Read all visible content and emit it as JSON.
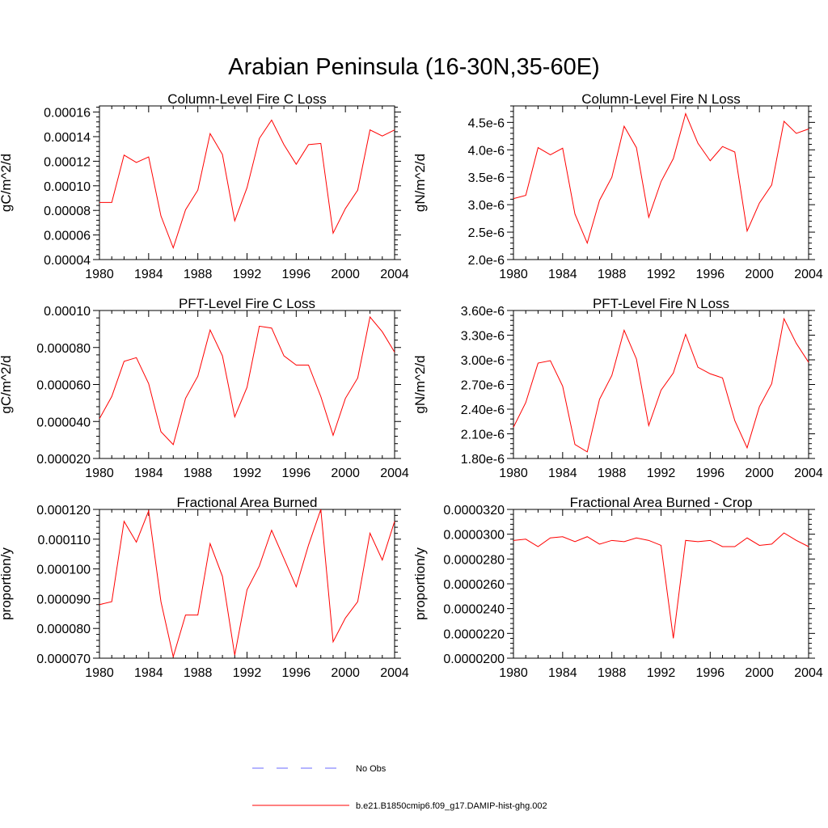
{
  "figure": {
    "title": "Arabian Peninsula (16-30N,35-60E)"
  },
  "chart_data": [
    {
      "type": "line",
      "title": "Column-Level Fire C Loss",
      "ylabel": "gC/m^2/d",
      "xlabel": "",
      "x": [
        1980,
        1981,
        1982,
        1983,
        1984,
        1985,
        1986,
        1987,
        1988,
        1989,
        1990,
        1991,
        1992,
        1993,
        1994,
        1995,
        1996,
        1997,
        1998,
        1999,
        2000,
        2001,
        2002,
        2003,
        2004
      ],
      "xlim": [
        1980,
        2004
      ],
      "ylim": [
        4e-05,
        0.000165
      ],
      "xticks": [
        1980,
        1984,
        1988,
        1992,
        1996,
        2000,
        2004
      ],
      "xtick_labels": [
        "1980",
        "1984",
        "1988",
        "1992",
        "1996",
        "2000",
        "2004"
      ],
      "yticks": [
        4e-05,
        6e-05,
        8e-05,
        0.0001,
        0.00012,
        0.00014,
        0.00016
      ],
      "ytick_labels": [
        "0.00004",
        "0.00006",
        "0.00008",
        "0.00010",
        "0.00012",
        "0.00014",
        "0.00016"
      ],
      "series": [
        {
          "name": "b.e21.B1850cmip6.f09_g17.DAMIP-hist-ghg.002",
          "color": "#ff0000",
          "values": [
            8.65e-05,
            8.65e-05,
            0.000125,
            0.000119,
            0.0001235,
            7.55e-05,
            4.95e-05,
            8.05e-05,
            9.65e-05,
            0.0001425,
            0.0001255,
            7.15e-05,
            9.85e-05,
            0.0001385,
            0.0001535,
            0.0001335,
            0.0001175,
            0.0001335,
            0.0001345,
            6.15e-05,
            8.15e-05,
            9.65e-05,
            0.0001455,
            0.0001405,
            0.0001455
          ]
        }
      ]
    },
    {
      "type": "line",
      "title": "Column-Level Fire N Loss",
      "ylabel": "gN/m^2/d",
      "xlabel": "",
      "x": [
        1980,
        1981,
        1982,
        1983,
        1984,
        1985,
        1986,
        1987,
        1988,
        1989,
        1990,
        1991,
        1992,
        1993,
        1994,
        1995,
        1996,
        1997,
        1998,
        1999,
        2000,
        2001,
        2002,
        2003,
        2004
      ],
      "xlim": [
        1980,
        2004
      ],
      "ylim": [
        2e-06,
        4.8e-06
      ],
      "xticks": [
        1980,
        1984,
        1988,
        1992,
        1996,
        2000,
        2004
      ],
      "xtick_labels": [
        "1980",
        "1984",
        "1988",
        "1992",
        "1996",
        "2000",
        "2004"
      ],
      "yticks": [
        2e-06,
        2.5e-06,
        3e-06,
        3.5e-06,
        4e-06,
        4.5e-06
      ],
      "ytick_labels": [
        "2.0e-6",
        "2.5e-6",
        "3.0e-6",
        "3.5e-6",
        "4.0e-6",
        "4.5e-6"
      ],
      "series": [
        {
          "name": "b.e21.B1850cmip6.f09_g17.DAMIP-hist-ghg.002",
          "color": "#ff0000",
          "values": [
            3.11e-06,
            3.17e-06,
            4.04e-06,
            3.91e-06,
            4.03e-06,
            2.83e-06,
            2.3e-06,
            3.08e-06,
            3.5e-06,
            4.43e-06,
            4.04e-06,
            2.77e-06,
            3.42e-06,
            3.84e-06,
            4.66e-06,
            4.12e-06,
            3.8e-06,
            4.06e-06,
            3.96e-06,
            2.52e-06,
            3.03e-06,
            3.36e-06,
            4.52e-06,
            4.3e-06,
            4.38e-06
          ]
        }
      ]
    },
    {
      "type": "line",
      "title": "PFT-Level Fire C Loss",
      "ylabel": "gC/m^2/d",
      "xlabel": "",
      "x": [
        1980,
        1981,
        1982,
        1983,
        1984,
        1985,
        1986,
        1987,
        1988,
        1989,
        1990,
        1991,
        1992,
        1993,
        1994,
        1995,
        1996,
        1997,
        1998,
        1999,
        2000,
        2001,
        2002,
        2003,
        2004
      ],
      "xlim": [
        1980,
        2004
      ],
      "ylim": [
        2e-05,
        0.0001
      ],
      "xticks": [
        1980,
        1984,
        1988,
        1992,
        1996,
        2000,
        2004
      ],
      "xtick_labels": [
        "1980",
        "1984",
        "1988",
        "1992",
        "1996",
        "2000",
        "2004"
      ],
      "yticks": [
        2e-05,
        4e-05,
        6e-05,
        8e-05,
        0.0001
      ],
      "ytick_labels": [
        "0.000020",
        "0.000040",
        "0.000060",
        "0.000080",
        "0.00010"
      ],
      "series": [
        {
          "name": "b.e21.B1850cmip6.f09_g17.DAMIP-hist-ghg.002",
          "color": "#ff0000",
          "values": [
            4.15e-05,
            5.35e-05,
            7.25e-05,
            7.45e-05,
            6.05e-05,
            3.45e-05,
            2.75e-05,
            5.25e-05,
            6.45e-05,
            8.95e-05,
            7.55e-05,
            4.25e-05,
            5.85e-05,
            9.15e-05,
            9.05e-05,
            7.55e-05,
            7.05e-05,
            7.05e-05,
            5.35e-05,
            3.25e-05,
            5.25e-05,
            6.35e-05,
            9.65e-05,
            8.85e-05,
            7.75e-05
          ]
        }
      ]
    },
    {
      "type": "line",
      "title": "PFT-Level Fire N Loss",
      "ylabel": "gN/m^2/d",
      "xlabel": "",
      "x": [
        1980,
        1981,
        1982,
        1983,
        1984,
        1985,
        1986,
        1987,
        1988,
        1989,
        1990,
        1991,
        1992,
        1993,
        1994,
        1995,
        1996,
        1997,
        1998,
        1999,
        2000,
        2001,
        2002,
        2003,
        2004
      ],
      "xlim": [
        1980,
        2004
      ],
      "ylim": [
        1.8e-06,
        3.6e-06
      ],
      "xticks": [
        1980,
        1984,
        1988,
        1992,
        1996,
        2000,
        2004
      ],
      "xtick_labels": [
        "1980",
        "1984",
        "1988",
        "1992",
        "1996",
        "2000",
        "2004"
      ],
      "yticks": [
        1.8e-06,
        2.1e-06,
        2.4e-06,
        2.7e-06,
        3e-06,
        3.3e-06,
        3.6e-06
      ],
      "ytick_labels": [
        "1.80e-6",
        "2.10e-6",
        "2.40e-6",
        "2.70e-6",
        "3.00e-6",
        "3.30e-6",
        "3.60e-6"
      ],
      "series": [
        {
          "name": "b.e21.B1850cmip6.f09_g17.DAMIP-hist-ghg.002",
          "color": "#ff0000",
          "values": [
            2.18e-06,
            2.48e-06,
            2.96e-06,
            2.99e-06,
            2.68e-06,
            1.97e-06,
            1.88e-06,
            2.52e-06,
            2.81e-06,
            3.36e-06,
            3.01e-06,
            2.2e-06,
            2.63e-06,
            2.84e-06,
            3.31e-06,
            2.91e-06,
            2.83e-06,
            2.78e-06,
            2.26e-06,
            1.93e-06,
            2.43e-06,
            2.71e-06,
            3.5e-06,
            3.2e-06,
            2.97e-06
          ]
        }
      ]
    },
    {
      "type": "line",
      "title": "Fractional Area Burned",
      "ylabel": "proportion/y",
      "xlabel": "",
      "x": [
        1980,
        1981,
        1982,
        1983,
        1984,
        1985,
        1986,
        1987,
        1988,
        1989,
        1990,
        1991,
        1992,
        1993,
        1994,
        1995,
        1996,
        1997,
        1998,
        1999,
        2000,
        2001,
        2002,
        2003,
        2004
      ],
      "xlim": [
        1980,
        2004
      ],
      "ylim": [
        7e-05,
        0.00012
      ],
      "xticks": [
        1980,
        1984,
        1988,
        1992,
        1996,
        2000,
        2004
      ],
      "xtick_labels": [
        "1980",
        "1984",
        "1988",
        "1992",
        "1996",
        "2000",
        "2004"
      ],
      "yticks": [
        7e-05,
        8e-05,
        9e-05,
        0.0001,
        0.00011,
        0.00012
      ],
      "ytick_labels": [
        "0.000070",
        "0.000080",
        "0.000090",
        "0.000100",
        "0.000110",
        "0.000120"
      ],
      "series": [
        {
          "name": "b.e21.B1850cmip6.f09_g17.DAMIP-hist-ghg.002",
          "color": "#ff0000",
          "values": [
            8.8e-05,
            8.9e-05,
            0.000116,
            0.000109,
            0.0001195,
            8.9e-05,
            7.05e-05,
            8.45e-05,
            8.45e-05,
            0.0001085,
            9.75e-05,
            7.1e-05,
            9.3e-05,
            0.000101,
            0.000113,
            0.0001035,
            9.4e-05,
            0.000108,
            0.00012,
            7.55e-05,
            8.35e-05,
            8.9e-05,
            0.000112,
            0.000103,
            0.000116
          ]
        }
      ]
    },
    {
      "type": "line",
      "title": "Fractional Area Burned - Crop",
      "ylabel": "proportion/y",
      "xlabel": "",
      "x": [
        1980,
        1981,
        1982,
        1983,
        1984,
        1985,
        1986,
        1987,
        1988,
        1989,
        1990,
        1991,
        1992,
        1993,
        1994,
        1995,
        1996,
        1997,
        1998,
        1999,
        2000,
        2001,
        2002,
        2003,
        2004
      ],
      "xlim": [
        1980,
        2004
      ],
      "ylim": [
        2e-05,
        3.2e-05
      ],
      "xticks": [
        1980,
        1984,
        1988,
        1992,
        1996,
        2000,
        2004
      ],
      "xtick_labels": [
        "1980",
        "1984",
        "1988",
        "1992",
        "1996",
        "2000",
        "2004"
      ],
      "yticks": [
        2e-05,
        2.2e-05,
        2.4e-05,
        2.6e-05,
        2.8e-05,
        3e-05,
        3.2e-05
      ],
      "ytick_labels": [
        "0.0000200",
        "0.0000220",
        "0.0000240",
        "0.0000260",
        "0.0000280",
        "0.0000300",
        "0.0000320"
      ],
      "series": [
        {
          "name": "b.e21.B1850cmip6.f09_g17.DAMIP-hist-ghg.002",
          "color": "#ff0000",
          "values": [
            2.95e-05,
            2.96e-05,
            2.9e-05,
            2.97e-05,
            2.98e-05,
            2.94e-05,
            2.98e-05,
            2.92e-05,
            2.95e-05,
            2.94e-05,
            2.97e-05,
            2.95e-05,
            2.91e-05,
            2.16e-05,
            2.95e-05,
            2.94e-05,
            2.95e-05,
            2.9e-05,
            2.9e-05,
            2.97e-05,
            2.91e-05,
            2.92e-05,
            3.01e-05,
            2.95e-05,
            2.9e-05
          ]
        }
      ]
    }
  ],
  "legend": {
    "items": [
      {
        "label": "No Obs",
        "style": "dashed",
        "color": "#6a6aff"
      },
      {
        "label": "b.e21.B1850cmip6.f09_g17.DAMIP-hist-ghg.002",
        "style": "solid",
        "color": "#ff0000"
      }
    ]
  }
}
